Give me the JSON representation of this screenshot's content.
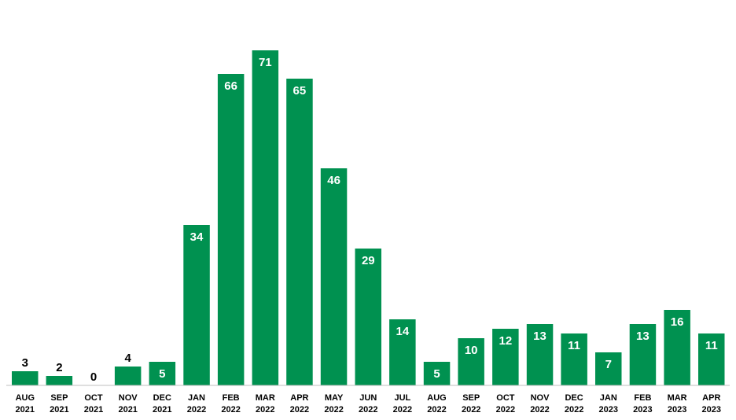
{
  "chart_data": {
    "type": "bar",
    "title": "",
    "xlabel": "",
    "ylabel": "",
    "categories": [
      {
        "month": "AUG",
        "year": "2021"
      },
      {
        "month": "SEP",
        "year": "2021"
      },
      {
        "month": "OCT",
        "year": "2021"
      },
      {
        "month": "NOV",
        "year": "2021"
      },
      {
        "month": "DEC",
        "year": "2021"
      },
      {
        "month": "JAN",
        "year": "2022"
      },
      {
        "month": "FEB",
        "year": "2022"
      },
      {
        "month": "MAR",
        "year": "2022"
      },
      {
        "month": "APR",
        "year": "2022"
      },
      {
        "month": "MAY",
        "year": "2022"
      },
      {
        "month": "JUN",
        "year": "2022"
      },
      {
        "month": "JUL",
        "year": "2022"
      },
      {
        "month": "AUG",
        "year": "2022"
      },
      {
        "month": "SEP",
        "year": "2022"
      },
      {
        "month": "OCT",
        "year": "2022"
      },
      {
        "month": "NOV",
        "year": "2022"
      },
      {
        "month": "DEC",
        "year": "2022"
      },
      {
        "month": "JAN",
        "year": "2023"
      },
      {
        "month": "FEB",
        "year": "2023"
      },
      {
        "month": "MAR",
        "year": "2023"
      },
      {
        "month": "APR",
        "year": "2023"
      }
    ],
    "values": [
      3,
      2,
      0,
      4,
      5,
      34,
      66,
      71,
      65,
      46,
      29,
      14,
      5,
      10,
      12,
      13,
      11,
      7,
      13,
      16,
      11
    ],
    "ylim": [
      0,
      71
    ],
    "grid": false,
    "legend": "none",
    "bar_color": "#009150"
  }
}
